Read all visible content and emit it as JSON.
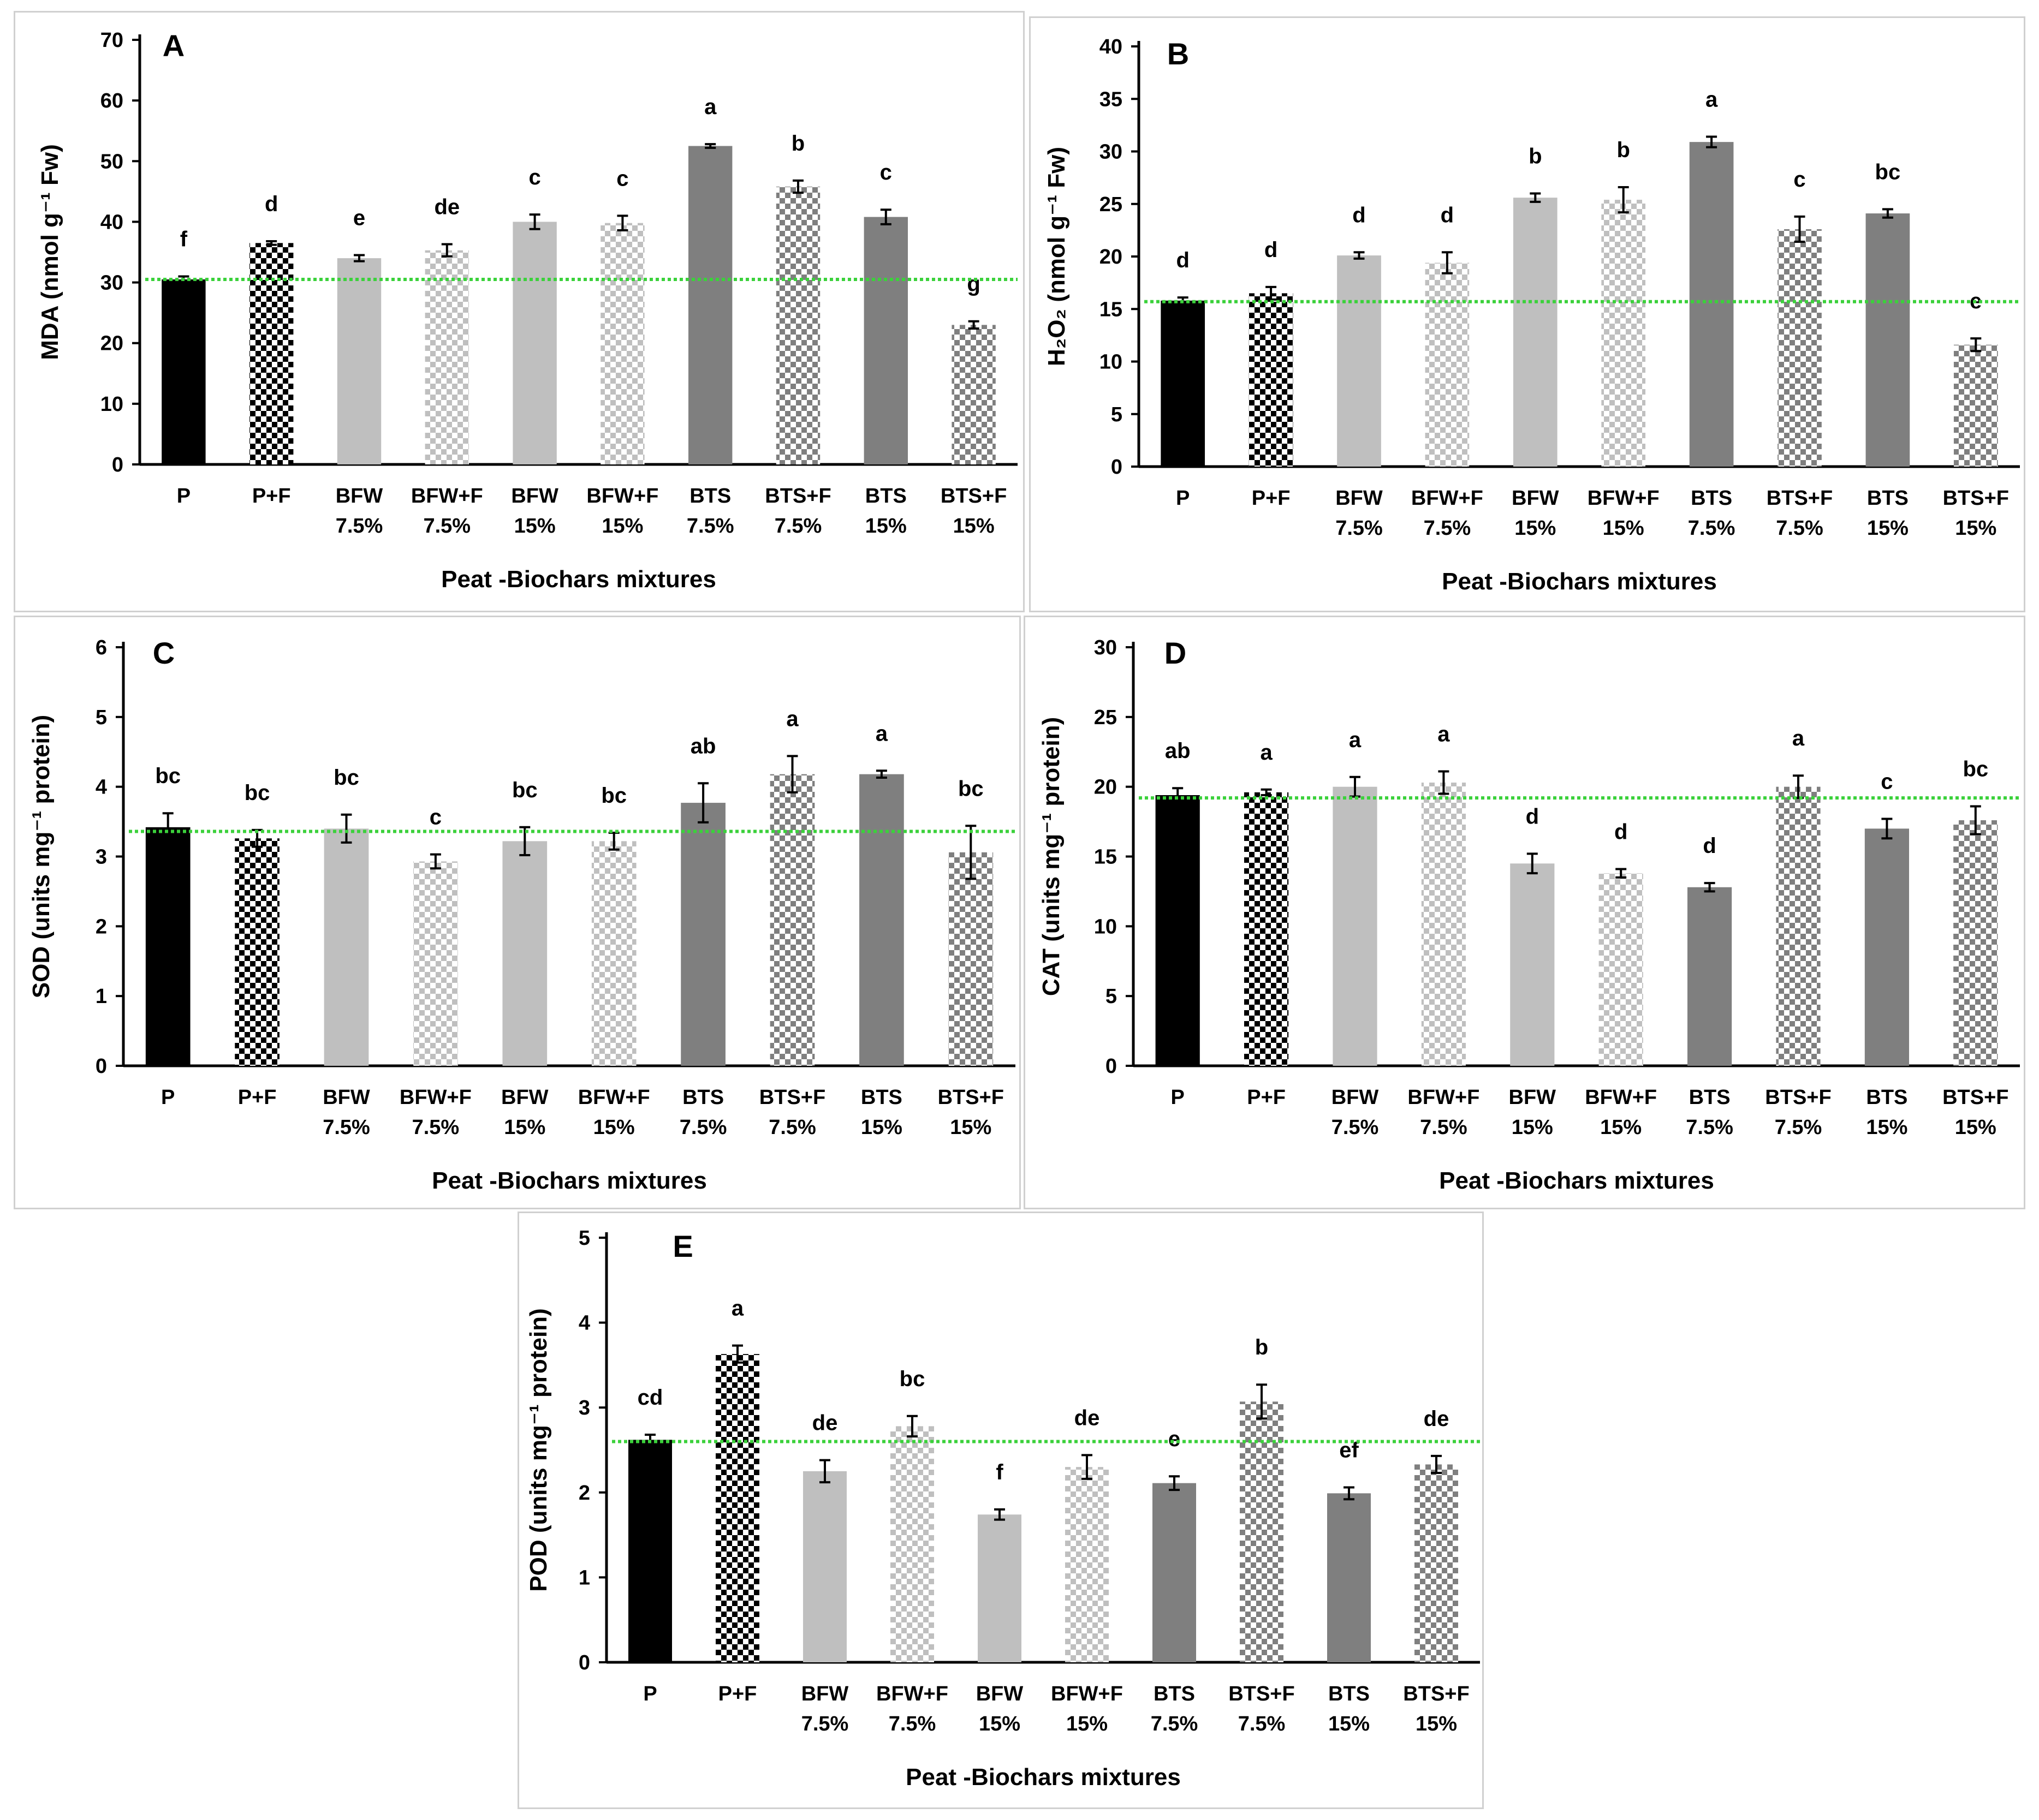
{
  "colors": {
    "P": "#000000",
    "BFW": "#bfbfbf",
    "BTS": "#7f7f7f",
    "check_light": "#ffffff",
    "reference_line": "#3bd13b"
  },
  "chart_data": [
    {
      "type": "bar",
      "panel": "A",
      "title": "",
      "ylabel": "MDA (nmol g⁻¹ Fw)",
      "xlabel": "Peat -Biochars mixtures",
      "ylim": [
        0,
        70
      ],
      "yticks": [
        0,
        10,
        20,
        30,
        40,
        50,
        60,
        70
      ],
      "categories": [
        [
          "P"
        ],
        [
          "P+F"
        ],
        [
          "BFW",
          "7.5%"
        ],
        [
          "BFW+F",
          "7.5%"
        ],
        [
          "BFW",
          "15%"
        ],
        [
          "BFW+F",
          "15%"
        ],
        [
          "BTS",
          "7.5%"
        ],
        [
          "BTS+F",
          "7.5%"
        ],
        [
          "BTS",
          "15%"
        ],
        [
          "BTS+F",
          "15%"
        ]
      ],
      "values": [
        30.5,
        36.5,
        34.0,
        35.3,
        40.0,
        39.8,
        52.5,
        45.8,
        40.8,
        23.0
      ],
      "errors": [
        0.5,
        0.3,
        0.5,
        1.0,
        1.2,
        1.2,
        0.3,
        1.0,
        1.2,
        0.6
      ],
      "letters": [
        "f",
        "d",
        "e",
        "de",
        "c",
        "c",
        "a",
        "b",
        "c",
        "g"
      ],
      "reference_line": 30.5
    },
    {
      "type": "bar",
      "panel": "B",
      "title": "",
      "ylabel": "H₂O₂ (nmol g⁻¹ Fw)",
      "xlabel": "Peat -Biochars mixtures",
      "ylim": [
        0,
        40
      ],
      "yticks": [
        0,
        5,
        10,
        15,
        20,
        25,
        30,
        35,
        40
      ],
      "categories": [
        [
          "P"
        ],
        [
          "P+F"
        ],
        [
          "BFW",
          "7.5%"
        ],
        [
          "BFW+F",
          "7.5%"
        ],
        [
          "BFW",
          "15%"
        ],
        [
          "BFW+F",
          "15%"
        ],
        [
          "BTS",
          "7.5%"
        ],
        [
          "BTS+F",
          "7.5%"
        ],
        [
          "BTS",
          "15%"
        ],
        [
          "BTS+F",
          "15%"
        ]
      ],
      "values": [
        15.8,
        16.5,
        20.1,
        19.4,
        25.6,
        25.4,
        30.9,
        22.6,
        24.1,
        11.6
      ],
      "errors": [
        0.3,
        0.6,
        0.3,
        1.0,
        0.4,
        1.2,
        0.5,
        1.2,
        0.4,
        0.6
      ],
      "letters": [
        "d",
        "d",
        "d",
        "d",
        "b",
        "b",
        "a",
        "c",
        "bc",
        "e"
      ],
      "reference_line": 15.7
    },
    {
      "type": "bar",
      "panel": "C",
      "title": "",
      "ylabel": "SOD (units mg⁻¹ protein)",
      "xlabel": "Peat -Biochars mixtures",
      "ylim": [
        0,
        6
      ],
      "yticks": [
        0,
        1,
        2,
        3,
        4,
        5,
        6
      ],
      "categories": [
        [
          "P"
        ],
        [
          "P+F"
        ],
        [
          "BFW",
          "7.5%"
        ],
        [
          "BFW+F",
          "7.5%"
        ],
        [
          "BFW",
          "15%"
        ],
        [
          "BFW+F",
          "15%"
        ],
        [
          "BTS",
          "7.5%"
        ],
        [
          "BTS+F",
          "7.5%"
        ],
        [
          "BTS",
          "15%"
        ],
        [
          "BTS+F",
          "15%"
        ]
      ],
      "values": [
        3.42,
        3.26,
        3.4,
        2.93,
        3.22,
        3.22,
        3.77,
        4.18,
        4.18,
        3.06
      ],
      "errors": [
        0.2,
        0.12,
        0.2,
        0.1,
        0.2,
        0.12,
        0.28,
        0.26,
        0.05,
        0.38
      ],
      "letters": [
        "bc",
        "bc",
        "bc",
        "c",
        "bc",
        "bc",
        "ab",
        "a",
        "a",
        "bc"
      ],
      "reference_line": 3.36
    },
    {
      "type": "bar",
      "panel": "D",
      "title": "",
      "ylabel": "CAT (units mg⁻¹ protein)",
      "xlabel": "Peat -Biochars mixtures",
      "ylim": [
        0,
        30
      ],
      "yticks": [
        0,
        5,
        10,
        15,
        20,
        25,
        30
      ],
      "categories": [
        [
          "P"
        ],
        [
          "P+F"
        ],
        [
          "BFW",
          "7.5%"
        ],
        [
          "BFW+F",
          "7.5%"
        ],
        [
          "BFW",
          "15%"
        ],
        [
          "BFW+F",
          "15%"
        ],
        [
          "BTS",
          "7.5%"
        ],
        [
          "BTS+F",
          "7.5%"
        ],
        [
          "BTS",
          "15%"
        ],
        [
          "BTS+F",
          "15%"
        ]
      ],
      "values": [
        19.4,
        19.6,
        20.0,
        20.3,
        14.5,
        13.8,
        12.8,
        20.0,
        17.0,
        17.6
      ],
      "errors": [
        0.5,
        0.2,
        0.7,
        0.8,
        0.7,
        0.3,
        0.3,
        0.8,
        0.7,
        1.0
      ],
      "letters": [
        "ab",
        "a",
        "a",
        "a",
        "d",
        "d",
        "d",
        "a",
        "c",
        "bc"
      ],
      "reference_line": 19.2
    },
    {
      "type": "bar",
      "panel": "E",
      "title": "",
      "ylabel": "POD (units mg⁻¹ protein)",
      "xlabel": "Peat -Biochars mixtures",
      "ylim": [
        0,
        5
      ],
      "yticks": [
        0,
        1,
        2,
        3,
        4,
        5
      ],
      "categories": [
        [
          "P"
        ],
        [
          "P+F"
        ],
        [
          "BFW",
          "7.5%"
        ],
        [
          "BFW+F",
          "7.5%"
        ],
        [
          "BFW",
          "15%"
        ],
        [
          "BFW+F",
          "15%"
        ],
        [
          "BTS",
          "7.5%"
        ],
        [
          "BTS+F",
          "7.5%"
        ],
        [
          "BTS",
          "15%"
        ],
        [
          "BTS+F",
          "15%"
        ]
      ],
      "values": [
        2.62,
        3.63,
        2.25,
        2.78,
        1.74,
        2.3,
        2.11,
        3.07,
        1.99,
        2.33
      ],
      "errors": [
        0.06,
        0.1,
        0.13,
        0.12,
        0.06,
        0.14,
        0.08,
        0.2,
        0.07,
        0.1
      ],
      "letters": [
        "cd",
        "a",
        "de",
        "bc",
        "f",
        "de",
        "e",
        "b",
        "ef",
        "de"
      ],
      "reference_line": 2.6
    }
  ]
}
